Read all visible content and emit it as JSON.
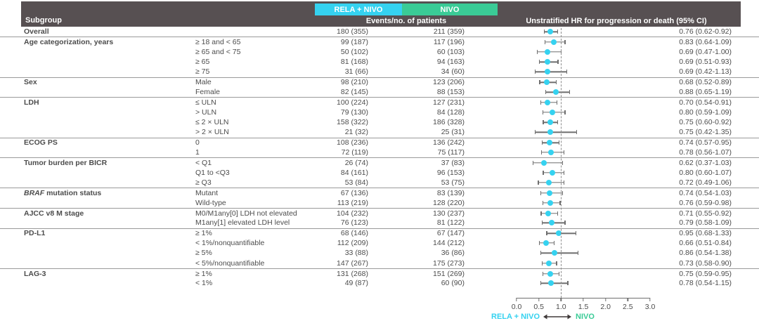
{
  "header": {
    "subgroup_label": "Subgroup",
    "arm1_label": "RELA + NIVO",
    "arm2_label": "NIVO",
    "events_label": "Events/no. of patients",
    "hr_label": "Unstratified HR for progression or death (95% CI)"
  },
  "footer": {
    "left_label": "RELA + NIVO",
    "right_label": "NIVO"
  },
  "colors": {
    "arm1": "#35d2f0",
    "arm2": "#3acb96",
    "header_bg": "#575052",
    "text": "#4c4c4c",
    "line": "#6f6f6f",
    "marker": "#35d2f0",
    "ref_dash": "#8d8d8d",
    "separator": "#9a9a9a",
    "arrow": "#403a3a"
  },
  "chart_data": {
    "type": "forest",
    "title": "Unstratified HR for progression or death (95% CI)",
    "axis": {
      "min": 0.0,
      "max": 3.0,
      "ref_line": 1.0,
      "ticks": [
        "0.0",
        "0.5",
        "1.0",
        "1.5",
        "2.0",
        "2.5",
        "3.0"
      ]
    },
    "rows": [
      {
        "group": "Overall",
        "label": "",
        "arm1": "180 (355)",
        "arm2": "211 (359)",
        "hr": 0.76,
        "lo": 0.62,
        "hi": 0.92,
        "hr_text": "0.76 (0.62-0.92)",
        "sep": false
      },
      {
        "group": "Age categorization, years",
        "label": "≥ 18 and < 65",
        "arm1": "99 (187)",
        "arm2": "117 (196)",
        "hr": 0.83,
        "lo": 0.64,
        "hi": 1.09,
        "hr_text": "0.83 (0.64-1.09)",
        "sep": true
      },
      {
        "group": "",
        "label": "≥ 65 and < 75",
        "arm1": "50 (102)",
        "arm2": "60 (103)",
        "hr": 0.69,
        "lo": 0.47,
        "hi": 1.0,
        "hr_text": "0.69 (0.47-1.00)",
        "sep": false
      },
      {
        "group": "",
        "label": "≥ 65",
        "arm1": "81 (168)",
        "arm2": "94 (163)",
        "hr": 0.69,
        "lo": 0.51,
        "hi": 0.93,
        "hr_text": "0.69 (0.51-0.93)",
        "sep": false
      },
      {
        "group": "",
        "label": "≥ 75",
        "arm1": "31 (66)",
        "arm2": "34 (60)",
        "hr": 0.69,
        "lo": 0.42,
        "hi": 1.13,
        "hr_text": "0.69 (0.42-1.13)",
        "sep": false
      },
      {
        "group": "Sex",
        "label": "Male",
        "arm1": "98 (210)",
        "arm2": "123 (206)",
        "hr": 0.68,
        "lo": 0.52,
        "hi": 0.89,
        "hr_text": "0.68 (0.52-0.89)",
        "sep": true
      },
      {
        "group": "",
        "label": "Female",
        "arm1": "82 (145)",
        "arm2": "88 (153)",
        "hr": 0.88,
        "lo": 0.65,
        "hi": 1.19,
        "hr_text": "0.88 (0.65-1.19)",
        "sep": false
      },
      {
        "group": "LDH",
        "label": "≤ ULN",
        "arm1": "100 (224)",
        "arm2": "127 (231)",
        "hr": 0.7,
        "lo": 0.54,
        "hi": 0.91,
        "hr_text": "0.70 (0.54-0.91)",
        "sep": true
      },
      {
        "group": "",
        "label": "> ULN",
        "arm1": "79 (130)",
        "arm2": "84 (128)",
        "hr": 0.8,
        "lo": 0.59,
        "hi": 1.09,
        "hr_text": "0.80 (0.59-1.09)",
        "sep": false
      },
      {
        "group": "",
        "label": "≤ 2 × ULN",
        "arm1": "158 (322)",
        "arm2": "186 (328)",
        "hr": 0.75,
        "lo": 0.6,
        "hi": 0.92,
        "hr_text": "0.75 (0.60-0.92)",
        "sep": false
      },
      {
        "group": "",
        "label": "> 2 × ULN",
        "arm1": "21 (32)",
        "arm2": "25 (31)",
        "hr": 0.75,
        "lo": 0.42,
        "hi": 1.35,
        "hr_text": "0.75 (0.42-1.35)",
        "sep": false
      },
      {
        "group": "ECOG PS",
        "label": "0",
        "arm1": "108 (236)",
        "arm2": "136 (242)",
        "hr": 0.74,
        "lo": 0.57,
        "hi": 0.95,
        "hr_text": "0.74 (0.57-0.95)",
        "sep": true
      },
      {
        "group": "",
        "label": "1",
        "arm1": "72 (119)",
        "arm2": "75 (117)",
        "hr": 0.78,
        "lo": 0.56,
        "hi": 1.07,
        "hr_text": "0.78 (0.56-1.07)",
        "sep": false
      },
      {
        "group": "Tumor burden per BICR",
        "label": "< Q1",
        "arm1": "26 (74)",
        "arm2": "37 (83)",
        "hr": 0.62,
        "lo": 0.37,
        "hi": 1.03,
        "hr_text": "0.62 (0.37-1.03)",
        "sep": true
      },
      {
        "group": "",
        "label": "Q1 to <Q3",
        "arm1": "84 (161)",
        "arm2": "96 (153)",
        "hr": 0.8,
        "lo": 0.6,
        "hi": 1.07,
        "hr_text": "0.80 (0.60-1.07)",
        "sep": false
      },
      {
        "group": "",
        "label": "≥ Q3",
        "arm1": "53 (84)",
        "arm2": "53 (75)",
        "hr": 0.72,
        "lo": 0.49,
        "hi": 1.06,
        "hr_text": "0.72 (0.49-1.06)",
        "sep": false
      },
      {
        "group_em": "BRAF",
        "group": "mutation status",
        "label": "Mutant",
        "arm1": "67 (136)",
        "arm2": "83 (139)",
        "hr": 0.74,
        "lo": 0.54,
        "hi": 1.03,
        "hr_text": "0.74 (0.54-1.03)",
        "sep": true
      },
      {
        "group": "",
        "label": "Wild-type",
        "arm1": "113 (219)",
        "arm2": "128 (220)",
        "hr": 0.76,
        "lo": 0.59,
        "hi": 0.98,
        "hr_text": "0.76 (0.59-0.98)",
        "sep": false
      },
      {
        "group": "AJCC v8 M stage",
        "label": "M0/M1any[0] LDH not elevated",
        "arm1": "104 (232)",
        "arm2": "130 (237)",
        "hr": 0.71,
        "lo": 0.55,
        "hi": 0.92,
        "hr_text": "0.71 (0.55-0.92)",
        "sep": true
      },
      {
        "group": "",
        "label": "M1any[1] elevated LDH level",
        "arm1": "76 (123)",
        "arm2": "81 (122)",
        "hr": 0.79,
        "lo": 0.58,
        "hi": 1.09,
        "hr_text": "0.79 (0.58-1.09)",
        "sep": false
      },
      {
        "group": "PD-L1",
        "label": "≥ 1%",
        "arm1": "68 (146)",
        "arm2": "67 (147)",
        "hr": 0.95,
        "lo": 0.68,
        "hi": 1.33,
        "hr_text": "0.95 (0.68-1.33)",
        "sep": true
      },
      {
        "group": "",
        "label": "< 1%/nonquantifiable",
        "arm1": "112 (209)",
        "arm2": "144 (212)",
        "hr": 0.66,
        "lo": 0.51,
        "hi": 0.84,
        "hr_text": "0.66 (0.51-0.84)",
        "sep": false
      },
      {
        "group": "",
        "label": "≥ 5%",
        "arm1": "33 (88)",
        "arm2": "36 (86)",
        "hr": 0.86,
        "lo": 0.54,
        "hi": 1.38,
        "hr_text": "0.86 (0.54-1.38)",
        "sep": false
      },
      {
        "group": "",
        "label": "< 5%/nonquantifiable",
        "arm1": "147 (267)",
        "arm2": "175 (273)",
        "hr": 0.73,
        "lo": 0.58,
        "hi": 0.9,
        "hr_text": "0.73 (0.58-0.90)",
        "sep": false
      },
      {
        "group": "LAG-3",
        "label": "≥ 1%",
        "arm1": "131 (268)",
        "arm2": "151 (269)",
        "hr": 0.75,
        "lo": 0.59,
        "hi": 0.95,
        "hr_text": "0.75 (0.59-0.95)",
        "sep": true
      },
      {
        "group": "",
        "label": "< 1%",
        "arm1": "49 (87)",
        "arm2": "60 (90)",
        "hr": 0.78,
        "lo": 0.54,
        "hi": 1.15,
        "hr_text": "0.78 (0.54-1.15)",
        "sep": false
      }
    ]
  }
}
